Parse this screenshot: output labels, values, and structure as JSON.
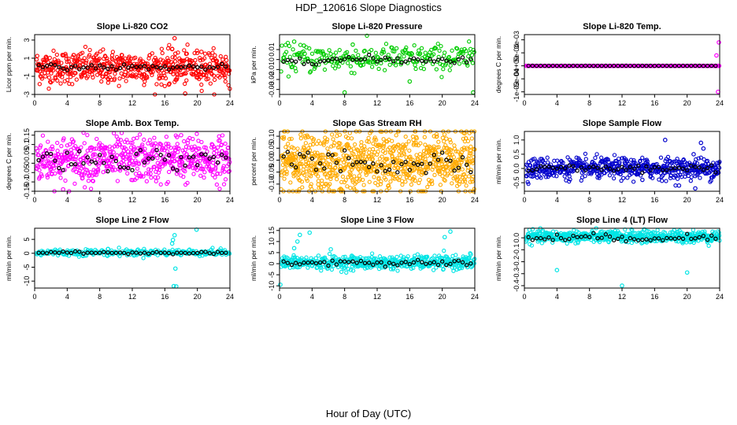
{
  "title": "HDP_120616  Slope Diagnostics",
  "xlabel": "Hour of Day (UTC)",
  "colors": {
    "frame": "#000000",
    "bg": "#ffffff"
  },
  "chart_data": [
    {
      "type": "scatter",
      "title": "Slope Li-820 CO2",
      "ylabel": "Licor ppm per min.",
      "color": "#ff0000",
      "xlim": [
        0,
        24
      ],
      "xticks": [
        0,
        4,
        8,
        12,
        16,
        20,
        24
      ],
      "ylim": [
        -3,
        3.6
      ],
      "yticks": [
        -3,
        -1,
        1,
        3
      ],
      "cloud": {
        "center": 0,
        "spread": 0.9,
        "density": 2
      },
      "outliers": [
        [
          17.2,
          3.2
        ],
        [
          16.9,
          2.0
        ],
        [
          17.3,
          1.5
        ],
        [
          16.5,
          -1.9
        ],
        [
          17.5,
          -1.2
        ],
        [
          20.5,
          1.7
        ],
        [
          18.5,
          -2.9
        ]
      ],
      "mean_center": 0,
      "mean_spread": 0.15
    },
    {
      "type": "scatter",
      "title": "Slope Li-820 Pressure",
      "ylabel": "kPa per min.",
      "color": "#00cc00",
      "xlim": [
        0,
        24
      ],
      "xticks": [
        0,
        4,
        8,
        12,
        16,
        20,
        24
      ],
      "ylim": [
        -0.035,
        0.025
      ],
      "yticks": [
        -0.03,
        -0.02,
        -0.01,
        0.0,
        0.01
      ],
      "cloud": {
        "center": 0.001,
        "spread": 0.007,
        "density": 0.9
      },
      "outliers": [
        [
          1.8,
          0.018
        ],
        [
          8,
          -0.033
        ],
        [
          16,
          -0.022
        ],
        [
          23.8,
          -0.033
        ],
        [
          3,
          0.014
        ],
        [
          9,
          0.015
        ]
      ],
      "mean_center": 0.0,
      "mean_spread": 0.002
    },
    {
      "type": "scatter",
      "title": "Slope Li-820 Temp.",
      "ylabel": "degrees C per min.",
      "color": "#ff00ff",
      "xlim": [
        0,
        24
      ],
      "xticks": [
        0,
        4,
        8,
        12,
        16,
        20,
        24
      ],
      "ylim": [
        -0.0011,
        0.0012
      ],
      "yticks": [
        -0.001,
        -0.0005,
        0.0,
        0.0005,
        0.001
      ],
      "ytick_labels": [
        "-1e-03",
        "-5e-04",
        "0e+00",
        "5e-04",
        "1e-03"
      ],
      "cloud": {
        "center": 0,
        "spread": 3e-06,
        "density": 1
      },
      "outliers": [
        [
          23.9,
          0.0009
        ],
        [
          23.6,
          0.0004
        ],
        [
          23.8,
          -0.001
        ]
      ],
      "mean_center": 0,
      "mean_spread": 2e-06
    },
    {
      "type": "scatter",
      "title": "Slope Amb. Box Temp.",
      "ylabel": "degrees C per min.",
      "color": "#ff00ff",
      "xlim": [
        0,
        24
      ],
      "xticks": [
        0,
        4,
        8,
        12,
        16,
        20,
        24
      ],
      "ylim": [
        -0.15,
        0.17
      ],
      "yticks": [
        -0.15,
        -0.1,
        -0.05,
        0,
        0.05,
        0.1,
        0.15
      ],
      "cloud": {
        "center": 0.02,
        "spread": 0.06,
        "density": 2.2
      },
      "outliers": [
        [
          18,
          0.15
        ],
        [
          17.5,
          0.14
        ],
        [
          3.5,
          -0.14
        ]
      ],
      "mean_center": 0.02,
      "mean_spread": 0.03
    },
    {
      "type": "scatter",
      "title": "Slope Gas Stream RH",
      "ylabel": "percent per min.",
      "color": "#ffaa00",
      "xlim": [
        0,
        24
      ],
      "xticks": [
        0,
        4,
        8,
        12,
        16,
        20,
        24
      ],
      "ylim": [
        -0.13,
        0.12
      ],
      "yticks": [
        -0.1,
        -0.05,
        0,
        0.05,
        0.1
      ],
      "ytick_labels": [
        "-0.10",
        "-0.05",
        "0.00",
        "0.05",
        "0.10"
      ],
      "cloud": {
        "center": -0.01,
        "spread": 0.065,
        "density": 3
      },
      "outliers": [
        [
          19,
          0.1
        ],
        [
          20.5,
          0.09
        ],
        [
          7.5,
          -0.12
        ]
      ],
      "mean_center": -0.01,
      "mean_spread": 0.03
    },
    {
      "type": "scatter",
      "title": "Slope Sample Flow",
      "ylabel": "ml/min per min.",
      "color": "#0000cc",
      "xlim": [
        0,
        24
      ],
      "xticks": [
        0,
        4,
        8,
        12,
        16,
        20,
        24
      ],
      "ylim": [
        -0.8,
        1.3
      ],
      "yticks": [
        -0.5,
        0,
        0.5,
        1.0
      ],
      "ytick_labels": [
        "-0.5",
        "0.0",
        "0.5",
        "1.0"
      ],
      "cloud": {
        "center": 0,
        "spread": 0.18,
        "density": 2
      },
      "outliers": [
        [
          17.3,
          1.0
        ],
        [
          21.7,
          0.9
        ],
        [
          22,
          0.7
        ],
        [
          21,
          -0.7
        ],
        [
          19,
          -0.6
        ],
        [
          14.5,
          -0.4
        ],
        [
          20.8,
          0.5
        ]
      ],
      "mean_center": 0,
      "mean_spread": 0.08
    },
    {
      "type": "scatter",
      "title": "Slope Line 2 Flow",
      "ylabel": "ml/min per min.",
      "color": "#00e5e5",
      "xlim": [
        0,
        24
      ],
      "xticks": [
        0,
        4,
        8,
        12,
        16,
        20,
        24
      ],
      "ylim": [
        -12.5,
        9
      ],
      "yticks": [
        -10,
        -5,
        0,
        5
      ],
      "cloud": {
        "center": 0.3,
        "spread": 0.6,
        "density": 1
      },
      "outliers": [
        [
          17.2,
          6.5
        ],
        [
          17.0,
          4.8
        ],
        [
          16.9,
          3.5
        ],
        [
          17.3,
          -5.5
        ],
        [
          17.1,
          -11.8
        ],
        [
          17.4,
          -11.9
        ],
        [
          19.9,
          8.5
        ],
        [
          9,
          1.5
        ]
      ],
      "mean_center": 0.2,
      "mean_spread": 0.2
    },
    {
      "type": "scatter",
      "title": "Slope Line 3 Flow",
      "ylabel": "ml/min per min.",
      "color": "#00e5e5",
      "xlim": [
        0,
        24
      ],
      "xticks": [
        0,
        4,
        8,
        12,
        16,
        20,
        24
      ],
      "ylim": [
        -11,
        16
      ],
      "yticks": [
        -10,
        -5,
        0,
        5,
        10,
        15
      ],
      "cloud": {
        "center": 0.5,
        "spread": 1.5,
        "density": 1.8
      },
      "outliers": [
        [
          2.5,
          13
        ],
        [
          3.7,
          14
        ],
        [
          2.2,
          10
        ],
        [
          1.8,
          7
        ],
        [
          6.3,
          6.5
        ],
        [
          21,
          14.5
        ],
        [
          20.3,
          12
        ],
        [
          23.5,
          4.2
        ],
        [
          0.1,
          -9.5
        ]
      ],
      "mean_center": 0.3,
      "mean_spread": 0.8
    },
    {
      "type": "scatter",
      "title": "Slope Line 4 (LT) Flow",
      "ylabel": "ml/min per min.",
      "color": "#00e5e5",
      "xlim": [
        0,
        24
      ],
      "xticks": [
        0,
        4,
        8,
        12,
        16,
        20,
        24
      ],
      "ylim": [
        -0.42,
        0.08
      ],
      "yticks": [
        -0.4,
        -0.3,
        -0.2,
        -0.1,
        0
      ],
      "ytick_labels": [
        "-0.4",
        "-0.3",
        "-0.2",
        "-0.1",
        "0.0"
      ],
      "cloud": {
        "center": 0.01,
        "spread": 0.025,
        "density": 2
      },
      "outliers": [
        [
          4,
          -0.27
        ],
        [
          20,
          -0.29
        ],
        [
          12,
          -0.4
        ]
      ],
      "mean_center": 0.0,
      "mean_spread": 0.015
    }
  ]
}
